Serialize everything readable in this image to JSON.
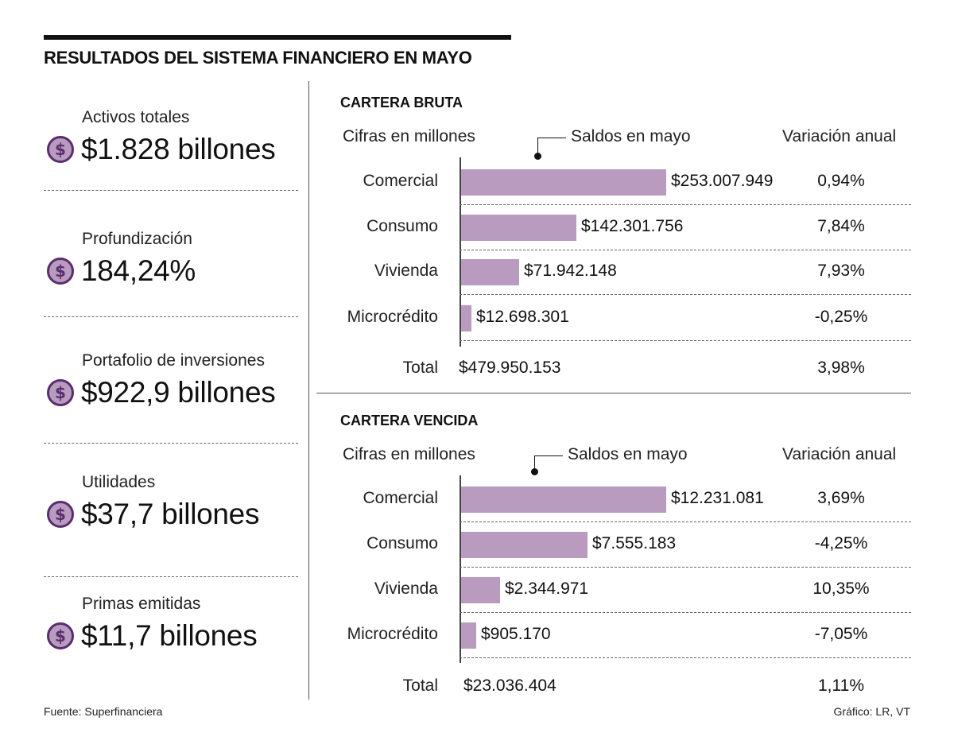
{
  "title": "RESULTADOS DEL SISTEMA FINANCIERO EN MAYO",
  "stats": [
    {
      "label": "Activos totales",
      "value": "$1.828 billones",
      "icon": "dollar-coin-icon"
    },
    {
      "label": "Profundización",
      "value": "184,24%",
      "icon": "dollar-coin-icon"
    },
    {
      "label": "Portafolio de inversiones",
      "value": "$922,9 billones",
      "icon": "dollar-coin-icon"
    },
    {
      "label": "Utilidades",
      "value": "$37,7 billones",
      "icon": "dollar-coin-icon"
    },
    {
      "label": "Primas emitidas",
      "value": "$11,7 billones",
      "icon": "dollar-coin-icon"
    }
  ],
  "colors": {
    "bar": "#b89bbf",
    "coin_fill": "#b89bbf",
    "coin_ring": "#5a2d6e"
  },
  "chart_data": [
    {
      "type": "bar",
      "orientation": "horizontal",
      "title": "CARTERA BRUTA",
      "units_label": "Cifras en millones",
      "value_label": "Saldos en mayo",
      "change_label": "Variación anual",
      "categories": [
        "Comercial",
        "Consumo",
        "Vivienda",
        "Microcrédito"
      ],
      "values": [
        253007949,
        142301756,
        71942148,
        12698301
      ],
      "value_labels": [
        "$253.007.949",
        "$142.301.756",
        "$71.942.148",
        "$12.698.301"
      ],
      "changes": [
        "0,94%",
        "7,84%",
        "7,93%",
        "-0,25%"
      ],
      "total_label": "Total",
      "total_value": "$479.950.153",
      "total_change": "3,98%"
    },
    {
      "type": "bar",
      "orientation": "horizontal",
      "title": "CARTERA VENCIDA",
      "units_label": "Cifras en millones",
      "value_label": "Saldos en mayo",
      "change_label": "Variación anual",
      "categories": [
        "Comercial",
        "Consumo",
        "Vivienda",
        "Microcrédito"
      ],
      "values": [
        12231081,
        7555183,
        2344971,
        905170
      ],
      "value_labels": [
        "$12.231.081",
        "$7.555.183",
        "$2.344.971",
        "$905.170"
      ],
      "changes": [
        "3,69%",
        "-4,25%",
        "10,35%",
        "-7,05%"
      ],
      "total_label": "Total",
      "total_value": "$23.036.404",
      "total_change": "1,11%"
    }
  ],
  "footer": {
    "source": "Fuente: Superfinanciera",
    "credit": "Gráfico: LR, VT"
  }
}
